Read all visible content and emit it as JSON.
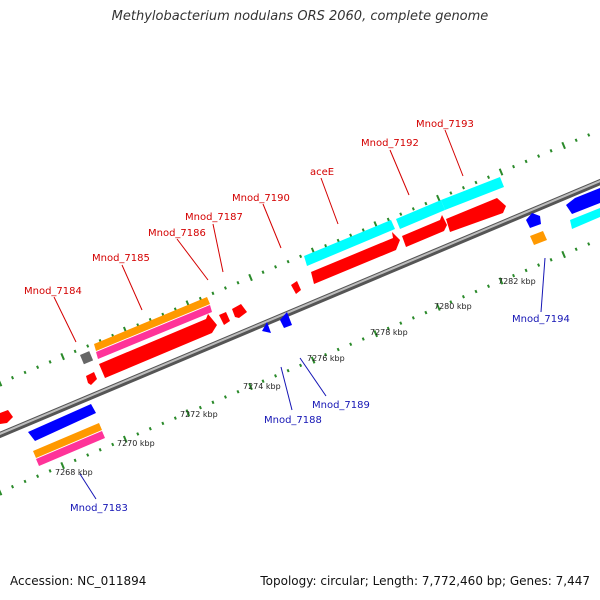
{
  "title": "Methylobacterium nodulans ORS 2060, complete genome",
  "accession": "Accession: NC_011894",
  "summary": "Topology: circular; Length: 7,772,460 bp; Genes: 7,447",
  "colors": {
    "backbone": "#8a8a8a",
    "tick": "#2a8a2a",
    "gene_red": "#ff0000",
    "gene_blue": "#0000ff",
    "gene_cyan": "#00ffff",
    "gene_orange": "#ff9900",
    "gene_magenta": "#ff3399",
    "gene_gray": "#666666",
    "label_red": "#d40000",
    "label_blue": "#1515b5"
  },
  "scale_labels": [
    "7268 kbp",
    "7270 kbp",
    "7272 kbp",
    "7274 kbp",
    "7276 kbp",
    "7278 kbp",
    "7280 kbp",
    "7282 kbp"
  ],
  "forward_labels": [
    "Mnod_7184",
    "Mnod_7185",
    "Mnod_7186",
    "Mnod_7187",
    "Mnod_7190",
    "aceE",
    "Mnod_7192",
    "Mnod_7193"
  ],
  "reverse_labels": [
    "Mnod_7183",
    "Mnod_7188",
    "Mnod_7189",
    "Mnod_7194"
  ]
}
